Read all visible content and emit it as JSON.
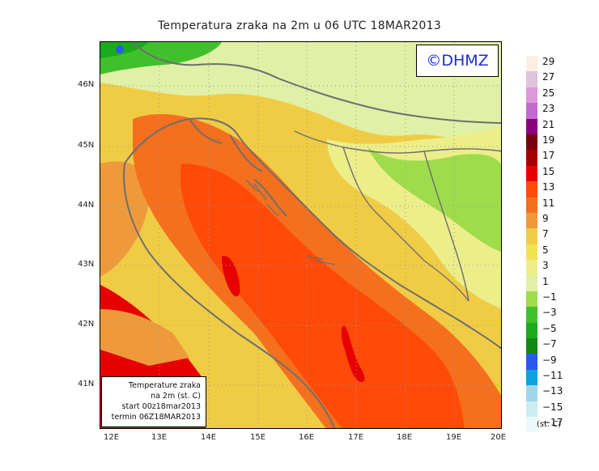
{
  "title": "Temperatura zraka na 2m u 06 UTC 18MAR2013",
  "logo": "©DHMZ",
  "info": {
    "line1": "Temperature zraka",
    "line2": "na 2m (st. C)",
    "line3": "start 00z18mar2013",
    "line4": "termin 06Z18MAR2013"
  },
  "lat_labels": [
    "46N",
    "45N",
    "44N",
    "43N",
    "42N",
    "41N"
  ],
  "lon_labels": [
    "12E",
    "13E",
    "14E",
    "15E",
    "16E",
    "17E",
    "18E",
    "19E",
    "20E"
  ],
  "legend": {
    "labels": [
      "29",
      "27",
      "25",
      "23",
      "21",
      "19",
      "17",
      "15",
      "13",
      "11",
      "9",
      "7",
      "5",
      "3",
      "1",
      "−1",
      "−3",
      "−5",
      "−7",
      "−9",
      "−11",
      "−13",
      "−15",
      "−17"
    ],
    "colors": [
      "#fdeee0",
      "#e0c3dc",
      "#dc98d8",
      "#c36ad1",
      "#8a007e",
      "#7a0010",
      "#a80000",
      "#e60000",
      "#ff4a0a",
      "#f5701e",
      "#ee9a3c",
      "#f0cc45",
      "#f0e350",
      "#ecee8a",
      "#e0f0a6",
      "#9edc4b",
      "#40c12c",
      "#1cab1e",
      "#128a12",
      "#2a58f2",
      "#0ea1df",
      "#a0d7e8",
      "#ccecf0",
      "#eafafb"
    ],
    "unit": "(st. C)"
  },
  "colors": {
    "coast": "#6e6e6e",
    "sea_warm": "#f5701e",
    "sea_hot": "#e60000"
  }
}
